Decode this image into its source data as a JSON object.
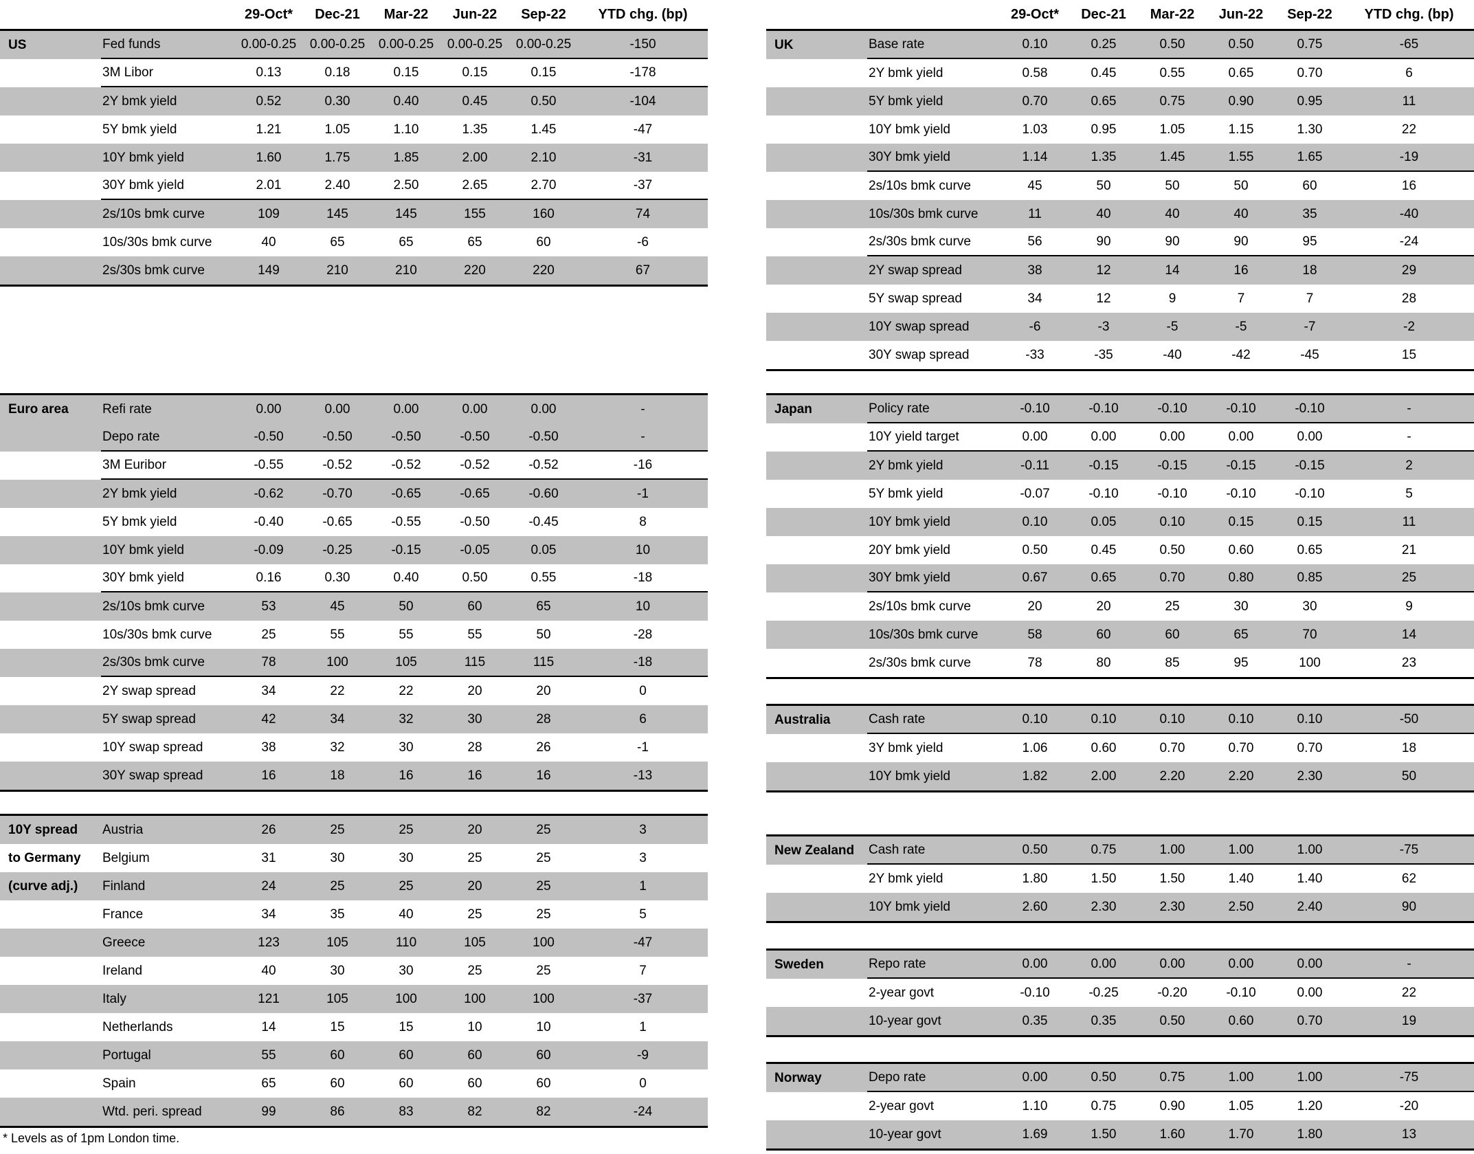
{
  "page": {
    "columns": [
      "29-Oct*",
      "Dec-21",
      "Mar-22",
      "Jun-22",
      "Sep-22",
      "YTD chg. (bp)"
    ],
    "footnote": "* Levels as of 1pm London time.",
    "colors": {
      "row_shade": "#c0c0c0",
      "text": "#000000",
      "background": "#ffffff"
    }
  },
  "left": {
    "tables": [
      {
        "id": "us",
        "rows": [
          {
            "section": "US",
            "label": "Fed funds",
            "values": [
              "0.00-0.25",
              "0.00-0.25",
              "0.00-0.25",
              "0.00-0.25",
              "0.00-0.25",
              "-150"
            ],
            "shaded": true,
            "rule": true
          },
          {
            "label": "3M Libor",
            "values": [
              "0.13",
              "0.18",
              "0.15",
              "0.15",
              "0.15",
              "-178"
            ],
            "shaded": false,
            "rule": true
          },
          {
            "label": "2Y bmk yield",
            "values": [
              "0.52",
              "0.30",
              "0.40",
              "0.45",
              "0.50",
              "-104"
            ],
            "shaded": true
          },
          {
            "label": "5Y bmk yield",
            "values": [
              "1.21",
              "1.05",
              "1.10",
              "1.35",
              "1.45",
              "-47"
            ],
            "shaded": false
          },
          {
            "label": "10Y bmk yield",
            "values": [
              "1.60",
              "1.75",
              "1.85",
              "2.00",
              "2.10",
              "-31"
            ],
            "shaded": true
          },
          {
            "label": "30Y bmk yield",
            "values": [
              "2.01",
              "2.40",
              "2.50",
              "2.65",
              "2.70",
              "-37"
            ],
            "shaded": false,
            "rule": true
          },
          {
            "label": "2s/10s bmk curve",
            "values": [
              "109",
              "145",
              "145",
              "155",
              "160",
              "74"
            ],
            "shaded": true
          },
          {
            "label": "10s/30s bmk curve",
            "values": [
              "40",
              "65",
              "65",
              "65",
              "60",
              "-6"
            ],
            "shaded": false
          },
          {
            "label": "2s/30s bmk curve",
            "values": [
              "149",
              "210",
              "210",
              "220",
              "220",
              "67"
            ],
            "shaded": true
          }
        ]
      },
      {
        "id": "euro_area",
        "rows": [
          {
            "section": "Euro area",
            "label": "Refi rate",
            "values": [
              "0.00",
              "0.00",
              "0.00",
              "0.00",
              "0.00",
              "-"
            ],
            "shaded": true
          },
          {
            "label": "Depo rate",
            "values": [
              "-0.50",
              "-0.50",
              "-0.50",
              "-0.50",
              "-0.50",
              "-"
            ],
            "shaded": true,
            "rule": true
          },
          {
            "label": "3M Euribor",
            "values": [
              "-0.55",
              "-0.52",
              "-0.52",
              "-0.52",
              "-0.52",
              "-16"
            ],
            "shaded": false,
            "rule": true
          },
          {
            "label": "2Y bmk yield",
            "values": [
              "-0.62",
              "-0.70",
              "-0.65",
              "-0.65",
              "-0.60",
              "-1"
            ],
            "shaded": true
          },
          {
            "label": "5Y bmk yield",
            "values": [
              "-0.40",
              "-0.65",
              "-0.55",
              "-0.50",
              "-0.45",
              "8"
            ],
            "shaded": false
          },
          {
            "label": "10Y bmk yield",
            "values": [
              "-0.09",
              "-0.25",
              "-0.15",
              "-0.05",
              "0.05",
              "10"
            ],
            "shaded": true
          },
          {
            "label": "30Y bmk yield",
            "values": [
              "0.16",
              "0.30",
              "0.40",
              "0.50",
              "0.55",
              "-18"
            ],
            "shaded": false,
            "rule": true
          },
          {
            "label": "2s/10s bmk curve",
            "values": [
              "53",
              "45",
              "50",
              "60",
              "65",
              "10"
            ],
            "shaded": true
          },
          {
            "label": "10s/30s bmk curve",
            "values": [
              "25",
              "55",
              "55",
              "55",
              "50",
              "-28"
            ],
            "shaded": false
          },
          {
            "label": "2s/30s bmk curve",
            "values": [
              "78",
              "100",
              "105",
              "115",
              "115",
              "-18"
            ],
            "shaded": true,
            "rule": true
          },
          {
            "label": "2Y swap spread",
            "values": [
              "34",
              "22",
              "22",
              "20",
              "20",
              "0"
            ],
            "shaded": false
          },
          {
            "label": "5Y swap spread",
            "values": [
              "42",
              "34",
              "32",
              "30",
              "28",
              "6"
            ],
            "shaded": true
          },
          {
            "label": "10Y swap spread",
            "values": [
              "38",
              "32",
              "30",
              "28",
              "26",
              "-1"
            ],
            "shaded": false
          },
          {
            "label": "30Y swap spread",
            "values": [
              "16",
              "18",
              "16",
              "16",
              "16",
              "-13"
            ],
            "shaded": true
          }
        ]
      },
      {
        "id": "spread_10y_germany",
        "rows": [
          {
            "section": "10Y spread",
            "label": "Austria",
            "values": [
              "26",
              "25",
              "25",
              "20",
              "25",
              "3"
            ],
            "shaded": true
          },
          {
            "section": "to Germany",
            "label": "Belgium",
            "values": [
              "31",
              "30",
              "30",
              "25",
              "25",
              "3"
            ],
            "shaded": false
          },
          {
            "section": "(curve adj.)",
            "label": "Finland",
            "values": [
              "24",
              "25",
              "25",
              "20",
              "25",
              "1"
            ],
            "shaded": true
          },
          {
            "label": "France",
            "values": [
              "34",
              "35",
              "40",
              "25",
              "25",
              "5"
            ],
            "shaded": false
          },
          {
            "label": "Greece",
            "values": [
              "123",
              "105",
              "110",
              "105",
              "100",
              "-47"
            ],
            "shaded": true
          },
          {
            "label": "Ireland",
            "values": [
              "40",
              "30",
              "30",
              "25",
              "25",
              "7"
            ],
            "shaded": false
          },
          {
            "label": "Italy",
            "values": [
              "121",
              "105",
              "100",
              "100",
              "100",
              "-37"
            ],
            "shaded": true
          },
          {
            "label": "Netherlands",
            "values": [
              "14",
              "15",
              "15",
              "10",
              "10",
              "1"
            ],
            "shaded": false
          },
          {
            "label": "Portugal",
            "values": [
              "55",
              "60",
              "60",
              "60",
              "60",
              "-9"
            ],
            "shaded": true
          },
          {
            "label": "Spain",
            "values": [
              "65",
              "60",
              "60",
              "60",
              "60",
              "0"
            ],
            "shaded": false
          },
          {
            "label": "Wtd. peri. spread",
            "values": [
              "99",
              "86",
              "83",
              "82",
              "82",
              "-24"
            ],
            "shaded": true
          }
        ]
      }
    ]
  },
  "right": {
    "tables": [
      {
        "id": "uk",
        "rows": [
          {
            "section": "UK",
            "label": "Base rate",
            "values": [
              "0.10",
              "0.25",
              "0.50",
              "0.50",
              "0.75",
              "-65"
            ],
            "shaded": true,
            "rule": true
          },
          {
            "label": "2Y bmk yield",
            "values": [
              "0.58",
              "0.45",
              "0.55",
              "0.65",
              "0.70",
              "6"
            ],
            "shaded": false
          },
          {
            "label": "5Y bmk yield",
            "values": [
              "0.70",
              "0.65",
              "0.75",
              "0.90",
              "0.95",
              "11"
            ],
            "shaded": true
          },
          {
            "label": "10Y bmk yield",
            "values": [
              "1.03",
              "0.95",
              "1.05",
              "1.15",
              "1.30",
              "22"
            ],
            "shaded": false
          },
          {
            "label": "30Y bmk yield",
            "values": [
              "1.14",
              "1.35",
              "1.45",
              "1.55",
              "1.65",
              "-19"
            ],
            "shaded": true,
            "rule": true
          },
          {
            "label": "2s/10s bmk curve",
            "values": [
              "45",
              "50",
              "50",
              "50",
              "60",
              "16"
            ],
            "shaded": false
          },
          {
            "label": "10s/30s bmk curve",
            "values": [
              "11",
              "40",
              "40",
              "40",
              "35",
              "-40"
            ],
            "shaded": true
          },
          {
            "label": "2s/30s bmk curve",
            "values": [
              "56",
              "90",
              "90",
              "90",
              "95",
              "-24"
            ],
            "shaded": false,
            "rule": true
          },
          {
            "label": "2Y swap spread",
            "values": [
              "38",
              "12",
              "14",
              "16",
              "18",
              "29"
            ],
            "shaded": true
          },
          {
            "label": "5Y swap spread",
            "values": [
              "34",
              "12",
              "9",
              "7",
              "7",
              "28"
            ],
            "shaded": false
          },
          {
            "label": "10Y swap spread",
            "values": [
              "-6",
              "-3",
              "-5",
              "-5",
              "-7",
              "-2"
            ],
            "shaded": true
          },
          {
            "label": "30Y swap spread",
            "values": [
              "-33",
              "-35",
              "-40",
              "-42",
              "-45",
              "15"
            ],
            "shaded": false
          }
        ]
      },
      {
        "id": "japan",
        "rows": [
          {
            "section": "Japan",
            "label": "Policy rate",
            "values": [
              "-0.10",
              "-0.10",
              "-0.10",
              "-0.10",
              "-0.10",
              "-"
            ],
            "shaded": true,
            "rule": true
          },
          {
            "label": "10Y yield target",
            "values": [
              "0.00",
              "0.00",
              "0.00",
              "0.00",
              "0.00",
              "-"
            ],
            "shaded": false,
            "rule": true
          },
          {
            "label": "2Y bmk yield",
            "values": [
              "-0.11",
              "-0.15",
              "-0.15",
              "-0.15",
              "-0.15",
              "2"
            ],
            "shaded": true
          },
          {
            "label": "5Y bmk yield",
            "values": [
              "-0.07",
              "-0.10",
              "-0.10",
              "-0.10",
              "-0.10",
              "5"
            ],
            "shaded": false
          },
          {
            "label": "10Y bmk yield",
            "values": [
              "0.10",
              "0.05",
              "0.10",
              "0.15",
              "0.15",
              "11"
            ],
            "shaded": true
          },
          {
            "label": "20Y bmk yield",
            "values": [
              "0.50",
              "0.45",
              "0.50",
              "0.60",
              "0.65",
              "21"
            ],
            "shaded": false
          },
          {
            "label": "30Y bmk yield",
            "values": [
              "0.67",
              "0.65",
              "0.70",
              "0.80",
              "0.85",
              "25"
            ],
            "shaded": true,
            "rule": true
          },
          {
            "label": "2s/10s bmk curve",
            "values": [
              "20",
              "20",
              "25",
              "30",
              "30",
              "9"
            ],
            "shaded": false
          },
          {
            "label": "10s/30s bmk curve",
            "values": [
              "58",
              "60",
              "60",
              "65",
              "70",
              "14"
            ],
            "shaded": true
          },
          {
            "label": "2s/30s bmk curve",
            "values": [
              "78",
              "80",
              "85",
              "95",
              "100",
              "23"
            ],
            "shaded": false
          }
        ]
      },
      {
        "id": "australia",
        "rows": [
          {
            "section": "Australia",
            "label": "Cash rate",
            "values": [
              "0.10",
              "0.10",
              "0.10",
              "0.10",
              "0.10",
              "-50"
            ],
            "shaded": true,
            "rule": true
          },
          {
            "label": "3Y bmk yield",
            "values": [
              "1.06",
              "0.60",
              "0.70",
              "0.70",
              "0.70",
              "18"
            ],
            "shaded": false
          },
          {
            "label": "10Y bmk yield",
            "values": [
              "1.82",
              "2.00",
              "2.20",
              "2.20",
              "2.30",
              "50"
            ],
            "shaded": true
          }
        ]
      },
      {
        "id": "new_zealand",
        "rows": [
          {
            "section": "New Zealand",
            "label": "Cash rate",
            "values": [
              "0.50",
              "0.75",
              "1.00",
              "1.00",
              "1.00",
              "-75"
            ],
            "shaded": true,
            "rule": true
          },
          {
            "label": "2Y bmk yield",
            "values": [
              "1.80",
              "1.50",
              "1.50",
              "1.40",
              "1.40",
              "62"
            ],
            "shaded": false
          },
          {
            "label": "10Y bmk yield",
            "values": [
              "2.60",
              "2.30",
              "2.30",
              "2.50",
              "2.40",
              "90"
            ],
            "shaded": true
          }
        ]
      },
      {
        "id": "sweden",
        "rows": [
          {
            "section": "Sweden",
            "label": "Repo rate",
            "values": [
              "0.00",
              "0.00",
              "0.00",
              "0.00",
              "0.00",
              "-"
            ],
            "shaded": true,
            "rule": true
          },
          {
            "label": "2-year govt",
            "values": [
              "-0.10",
              "-0.25",
              "-0.20",
              "-0.10",
              "0.00",
              "22"
            ],
            "shaded": false
          },
          {
            "label": "10-year govt",
            "values": [
              "0.35",
              "0.35",
              "0.50",
              "0.60",
              "0.70",
              "19"
            ],
            "shaded": true
          }
        ]
      },
      {
        "id": "norway",
        "rows": [
          {
            "section": "Norway",
            "label": "Depo rate",
            "values": [
              "0.00",
              "0.50",
              "0.75",
              "1.00",
              "1.00",
              "-75"
            ],
            "shaded": true,
            "rule": true
          },
          {
            "label": "2-year govt",
            "values": [
              "1.10",
              "0.75",
              "0.90",
              "1.05",
              "1.20",
              "-20"
            ],
            "shaded": false
          },
          {
            "label": "10-year govt",
            "values": [
              "1.69",
              "1.50",
              "1.60",
              "1.70",
              "1.80",
              "13"
            ],
            "shaded": true
          }
        ]
      }
    ]
  }
}
